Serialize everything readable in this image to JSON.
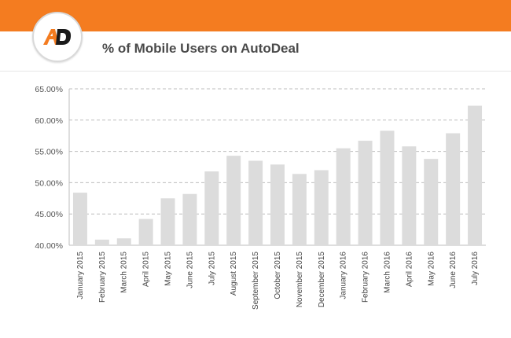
{
  "header": {
    "title": "% of Mobile Users on AutoDeal",
    "logo_icon": "autodeal-logo-icon",
    "logo_text": "AD",
    "brand_color": "#f47c20"
  },
  "chart_data": {
    "type": "bar",
    "title": "% of Mobile Users on AutoDeal",
    "xlabel": "",
    "ylabel": "",
    "ylim": [
      40,
      65
    ],
    "yticks": [
      "40.00%",
      "45.00%",
      "50.00%",
      "55.00%",
      "60.00%",
      "65.00%"
    ],
    "ytick_values": [
      40,
      45,
      50,
      55,
      60,
      65
    ],
    "grid": true,
    "bar_color": "#dcdcdc",
    "categories": [
      "January 2015",
      "February 2015",
      "March 2015",
      "April 2015",
      "May 2015",
      "June 2015",
      "July 2015",
      "August 2015",
      "September 2015",
      "October 2015",
      "November 2015",
      "December 2015",
      "January 2016",
      "February 2016",
      "March 2016",
      "April 2016",
      "May 2016",
      "June 2016",
      "July 2016"
    ],
    "values": [
      48.4,
      40.9,
      41.1,
      44.2,
      47.5,
      48.2,
      51.8,
      54.3,
      53.5,
      52.9,
      51.4,
      52.0,
      55.5,
      56.7,
      58.3,
      55.8,
      53.8,
      57.9,
      62.3
    ]
  }
}
